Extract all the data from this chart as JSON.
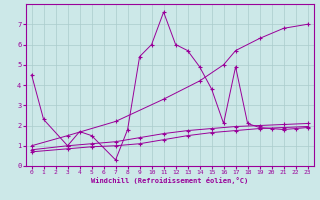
{
  "xlabel": "Windchill (Refroidissement éolien,°C)",
  "background_color": "#cce8e8",
  "grid_color": "#aacccc",
  "line_color": "#990099",
  "xlim": [
    -0.5,
    23.5
  ],
  "ylim": [
    0,
    8
  ],
  "xticks": [
    0,
    1,
    2,
    3,
    4,
    5,
    6,
    7,
    8,
    9,
    10,
    11,
    12,
    13,
    14,
    15,
    16,
    17,
    18,
    19,
    20,
    21,
    22,
    23
  ],
  "yticks": [
    0,
    1,
    2,
    3,
    4,
    5,
    6,
    7
  ],
  "lines": [
    {
      "x": [
        0,
        1,
        3,
        4,
        5,
        7,
        8,
        9,
        10,
        11,
        12,
        13,
        14,
        15,
        16,
        17,
        18,
        19,
        20,
        21,
        22,
        23
      ],
      "y": [
        4.5,
        2.3,
        1.0,
        1.7,
        1.5,
        0.3,
        1.8,
        5.4,
        6.0,
        7.6,
        6.0,
        5.7,
        4.9,
        3.8,
        2.1,
        4.9,
        2.1,
        1.9,
        1.85,
        1.8,
        1.85,
        1.9
      ]
    },
    {
      "x": [
        0,
        3,
        7,
        11,
        14,
        16,
        17,
        19,
        21,
        23
      ],
      "y": [
        1.0,
        1.5,
        2.2,
        3.3,
        4.2,
        5.0,
        5.7,
        6.3,
        6.8,
        7.0
      ]
    },
    {
      "x": [
        0,
        3,
        5,
        7,
        9,
        11,
        13,
        15,
        17,
        19,
        21,
        23
      ],
      "y": [
        0.8,
        1.0,
        1.1,
        1.2,
        1.4,
        1.6,
        1.75,
        1.85,
        1.95,
        2.0,
        2.05,
        2.1
      ]
    },
    {
      "x": [
        0,
        3,
        5,
        7,
        9,
        11,
        13,
        15,
        17,
        19,
        21,
        23
      ],
      "y": [
        0.7,
        0.85,
        0.95,
        1.0,
        1.1,
        1.3,
        1.5,
        1.65,
        1.75,
        1.85,
        1.9,
        1.95
      ]
    }
  ]
}
